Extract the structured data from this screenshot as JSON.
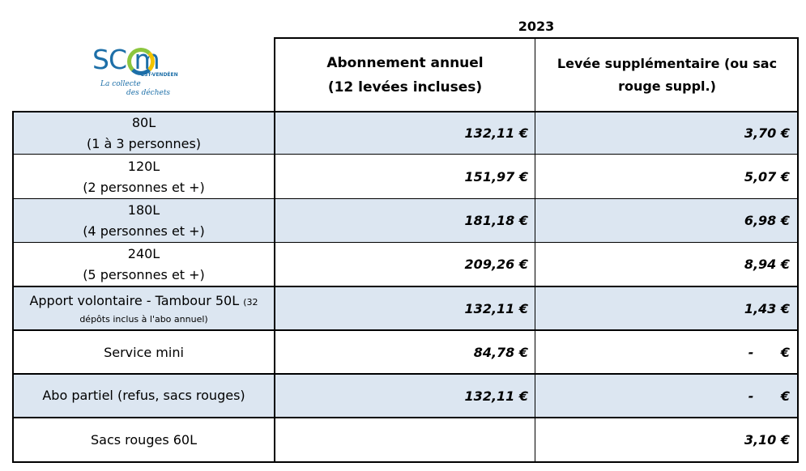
{
  "year": "2023",
  "logo": {
    "brand": "SC   m",
    "sub": "EST-VENDÉEN",
    "tagline_1": "La collecte",
    "tagline_2": "des déchets"
  },
  "headers": {
    "col2": "Abonnement annuel (12 levées incluses)",
    "col3": "Levée supplémentaire (ou sac rouge suppl.)"
  },
  "rows": [
    {
      "label_1": "80L",
      "label_2": "(1 à 3 personnes)",
      "annual": "132,11 €",
      "extra": "3,70 €"
    },
    {
      "label_1": "120L",
      "label_2": "(2 personnes et +)",
      "annual": "151,97 €",
      "extra": "5,07 €"
    },
    {
      "label_1": "180L",
      "label_2": "(4 personnes et +)",
      "annual": "181,18 €",
      "extra": "6,98 €"
    },
    {
      "label_1": "240L",
      "label_2": "(5 personnes et +)",
      "annual": "209,26 €",
      "extra": "8,94 €"
    },
    {
      "label_1": "Apport volontaire - Tambour 50L",
      "label_1b": "(32",
      "label_2": "dépôts inclus à l'abo annuel)",
      "annual": "132,11 €",
      "extra": "1,43 €"
    },
    {
      "label_1": "Service mini",
      "annual": "84,78 €",
      "extra": "-      €"
    },
    {
      "label_1": "Abo partiel (refus, sacs rouges)",
      "annual": "132,11 €",
      "extra": "-      €"
    },
    {
      "label_1": "Sacs rouges 60L",
      "annual": "",
      "extra": "3,10 €"
    }
  ],
  "colors": {
    "row_blue": "#dce6f1",
    "logo_blue": "#1d6fa8",
    "logo_green": "#8cc63e",
    "logo_yellow": "#f2c300"
  }
}
